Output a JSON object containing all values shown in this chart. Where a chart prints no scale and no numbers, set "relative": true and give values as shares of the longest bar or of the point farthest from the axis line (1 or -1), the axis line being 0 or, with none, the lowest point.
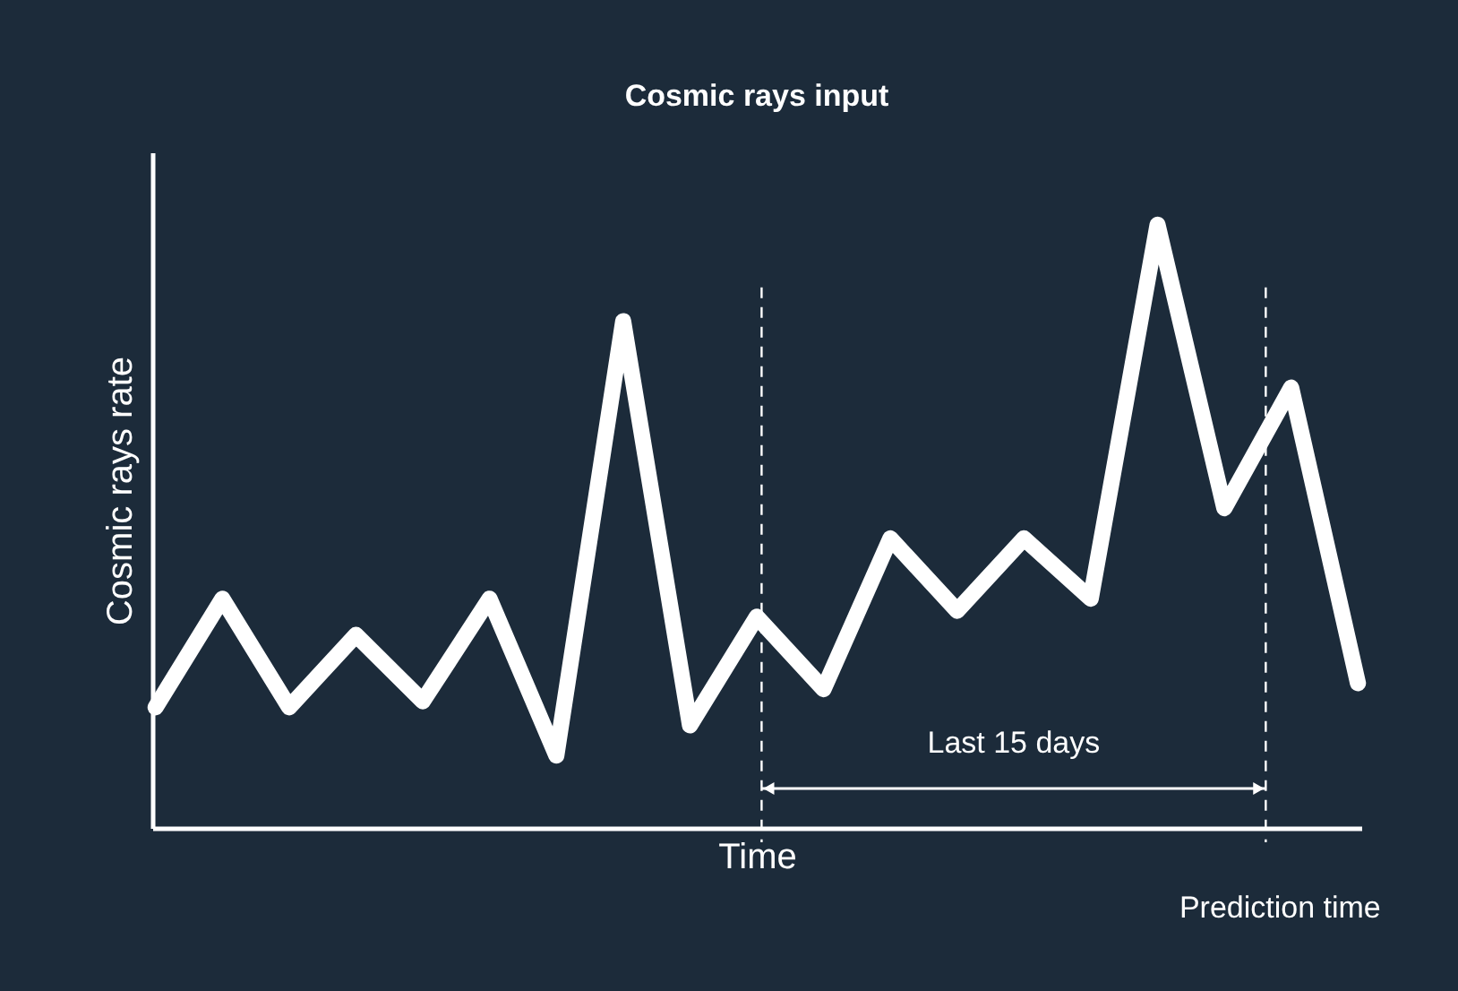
{
  "chart_data": {
    "type": "line",
    "title": "Cosmic rays input",
    "xlabel": "Time",
    "ylabel": "Cosmic rays rate",
    "relative": true,
    "marker": "none",
    "line_style": "solid",
    "categories": [
      null,
      null,
      null,
      null,
      null,
      null,
      null,
      null,
      null,
      null,
      null,
      null,
      null,
      null,
      null,
      null,
      null,
      null,
      null
    ],
    "series": [
      {
        "color": "#ffffff",
        "values": [
          0.2,
          0.38,
          0.2,
          0.32,
          0.21,
          0.38,
          0.12,
          0.84,
          0.17,
          0.35,
          0.23,
          0.48,
          0.36,
          0.48,
          0.38,
          1.0,
          0.53,
          0.73,
          0.24
        ]
      }
    ],
    "annotations": [
      "Last 15 days",
      "Prediction time"
    ]
  }
}
